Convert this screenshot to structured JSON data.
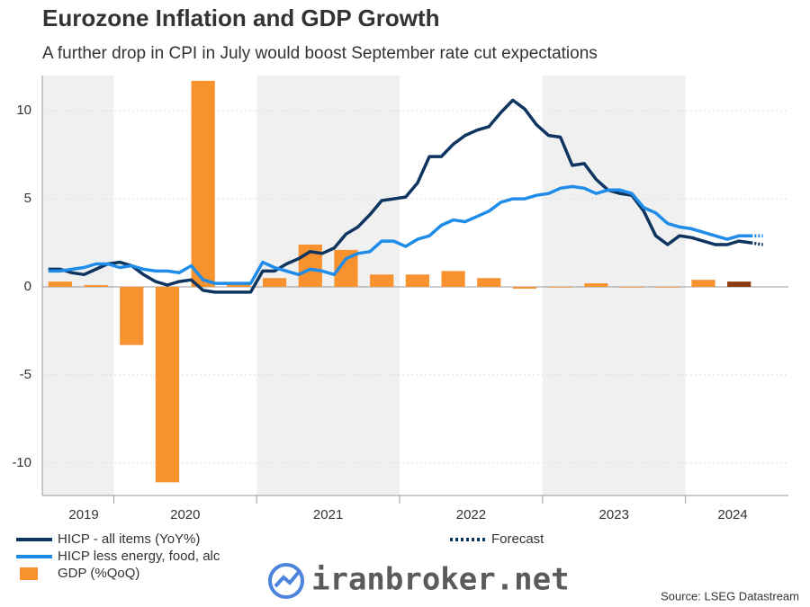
{
  "chart_data": {
    "type": "bar-line",
    "title": "Eurozone Inflation and GDP Growth",
    "subtitle": "A further drop in CPI in July would boost September rate cut expectations",
    "source": "Source: LSEG Datastream",
    "watermark": "iranbroker.net",
    "xlim": [
      2019.5,
      2024.72
    ],
    "ylim": [
      -12,
      12
    ],
    "yticks": [
      10,
      5,
      0,
      -5,
      -10
    ],
    "xticks": [
      {
        "value": 2019.79,
        "label": "2019"
      },
      {
        "value": 2020.5,
        "label": "2020"
      },
      {
        "value": 2021.5,
        "label": "2021"
      },
      {
        "value": 2022.5,
        "label": "2022"
      },
      {
        "value": 2023.5,
        "label": "2023"
      },
      {
        "value": 2024.33,
        "label": "2024"
      }
    ],
    "grid": true,
    "shade_odd_years": true,
    "x": [
      2019.542,
      2019.625,
      2019.708,
      2019.792,
      2019.875,
      2019.958,
      2020.042,
      2020.125,
      2020.208,
      2020.292,
      2020.375,
      2020.458,
      2020.542,
      2020.625,
      2020.708,
      2020.792,
      2020.875,
      2020.958,
      2021.042,
      2021.125,
      2021.208,
      2021.292,
      2021.375,
      2021.458,
      2021.542,
      2021.625,
      2021.708,
      2021.792,
      2021.875,
      2021.958,
      2022.042,
      2022.125,
      2022.208,
      2022.292,
      2022.375,
      2022.458,
      2022.542,
      2022.625,
      2022.708,
      2022.792,
      2022.875,
      2022.958,
      2023.042,
      2023.125,
      2023.208,
      2023.292,
      2023.375,
      2023.458,
      2023.542,
      2023.625,
      2023.708,
      2023.792,
      2023.875,
      2023.958,
      2024.042,
      2024.125,
      2024.208,
      2024.292,
      2024.375,
      2024.458
    ],
    "forecast": {
      "name": "Forecast",
      "x": 2024.542,
      "color": "#0d3560"
    },
    "series": [
      {
        "name": "HICP - all items (YoY%)",
        "type": "line",
        "color": "#0d3560",
        "values": [
          1.0,
          1.0,
          0.8,
          0.7,
          1.0,
          1.3,
          1.4,
          1.2,
          0.7,
          0.3,
          0.1,
          0.3,
          0.4,
          -0.2,
          -0.3,
          -0.3,
          -0.3,
          -0.3,
          0.9,
          0.9,
          1.3,
          1.6,
          2.0,
          1.9,
          2.2,
          3.0,
          3.4,
          4.1,
          4.9,
          5.0,
          5.1,
          5.9,
          7.4,
          7.4,
          8.1,
          8.6,
          8.9,
          9.1,
          9.9,
          10.6,
          10.1,
          9.2,
          8.6,
          8.5,
          6.9,
          7.0,
          6.1,
          5.5,
          5.3,
          5.2,
          4.3,
          2.9,
          2.4,
          2.9,
          2.8,
          2.6,
          2.4,
          2.4,
          2.6,
          2.5
        ],
        "forecast_value": 2.4
      },
      {
        "name": "HICP less energy, food, alc",
        "type": "line",
        "color": "#1e8ce8",
        "values": [
          0.9,
          0.9,
          1.0,
          1.1,
          1.3,
          1.3,
          1.1,
          1.2,
          1.0,
          0.9,
          0.9,
          0.8,
          1.2,
          0.4,
          0.2,
          0.2,
          0.2,
          0.2,
          1.4,
          1.1,
          0.9,
          0.7,
          1.0,
          0.9,
          0.7,
          1.6,
          1.9,
          2.0,
          2.6,
          2.6,
          2.3,
          2.7,
          2.9,
          3.5,
          3.8,
          3.7,
          4.0,
          4.3,
          4.8,
          5.0,
          5.0,
          5.2,
          5.3,
          5.6,
          5.7,
          5.6,
          5.3,
          5.5,
          5.5,
          5.3,
          4.5,
          4.2,
          3.6,
          3.4,
          3.3,
          3.1,
          2.9,
          2.7,
          2.9,
          2.9
        ],
        "forecast_value": 2.9
      },
      {
        "name": "GDP (%QoQ)",
        "type": "bar",
        "color": "#f7922e",
        "last_color": "#8b3a0e",
        "x": [
          2019.625,
          2019.875,
          2020.125,
          2020.375,
          2020.625,
          2020.875,
          2021.125,
          2021.375,
          2021.625,
          2021.875,
          2022.125,
          2022.375,
          2022.625,
          2022.875,
          2023.125,
          2023.375,
          2023.625,
          2023.875,
          2024.125,
          2024.375
        ],
        "values": [
          0.3,
          0.1,
          -3.3,
          -11.1,
          11.7,
          0.2,
          0.5,
          2.4,
          2.1,
          0.7,
          0.7,
          0.9,
          0.5,
          -0.1,
          0.0,
          0.2,
          0.0,
          0.0,
          0.4,
          0.3
        ]
      }
    ]
  }
}
